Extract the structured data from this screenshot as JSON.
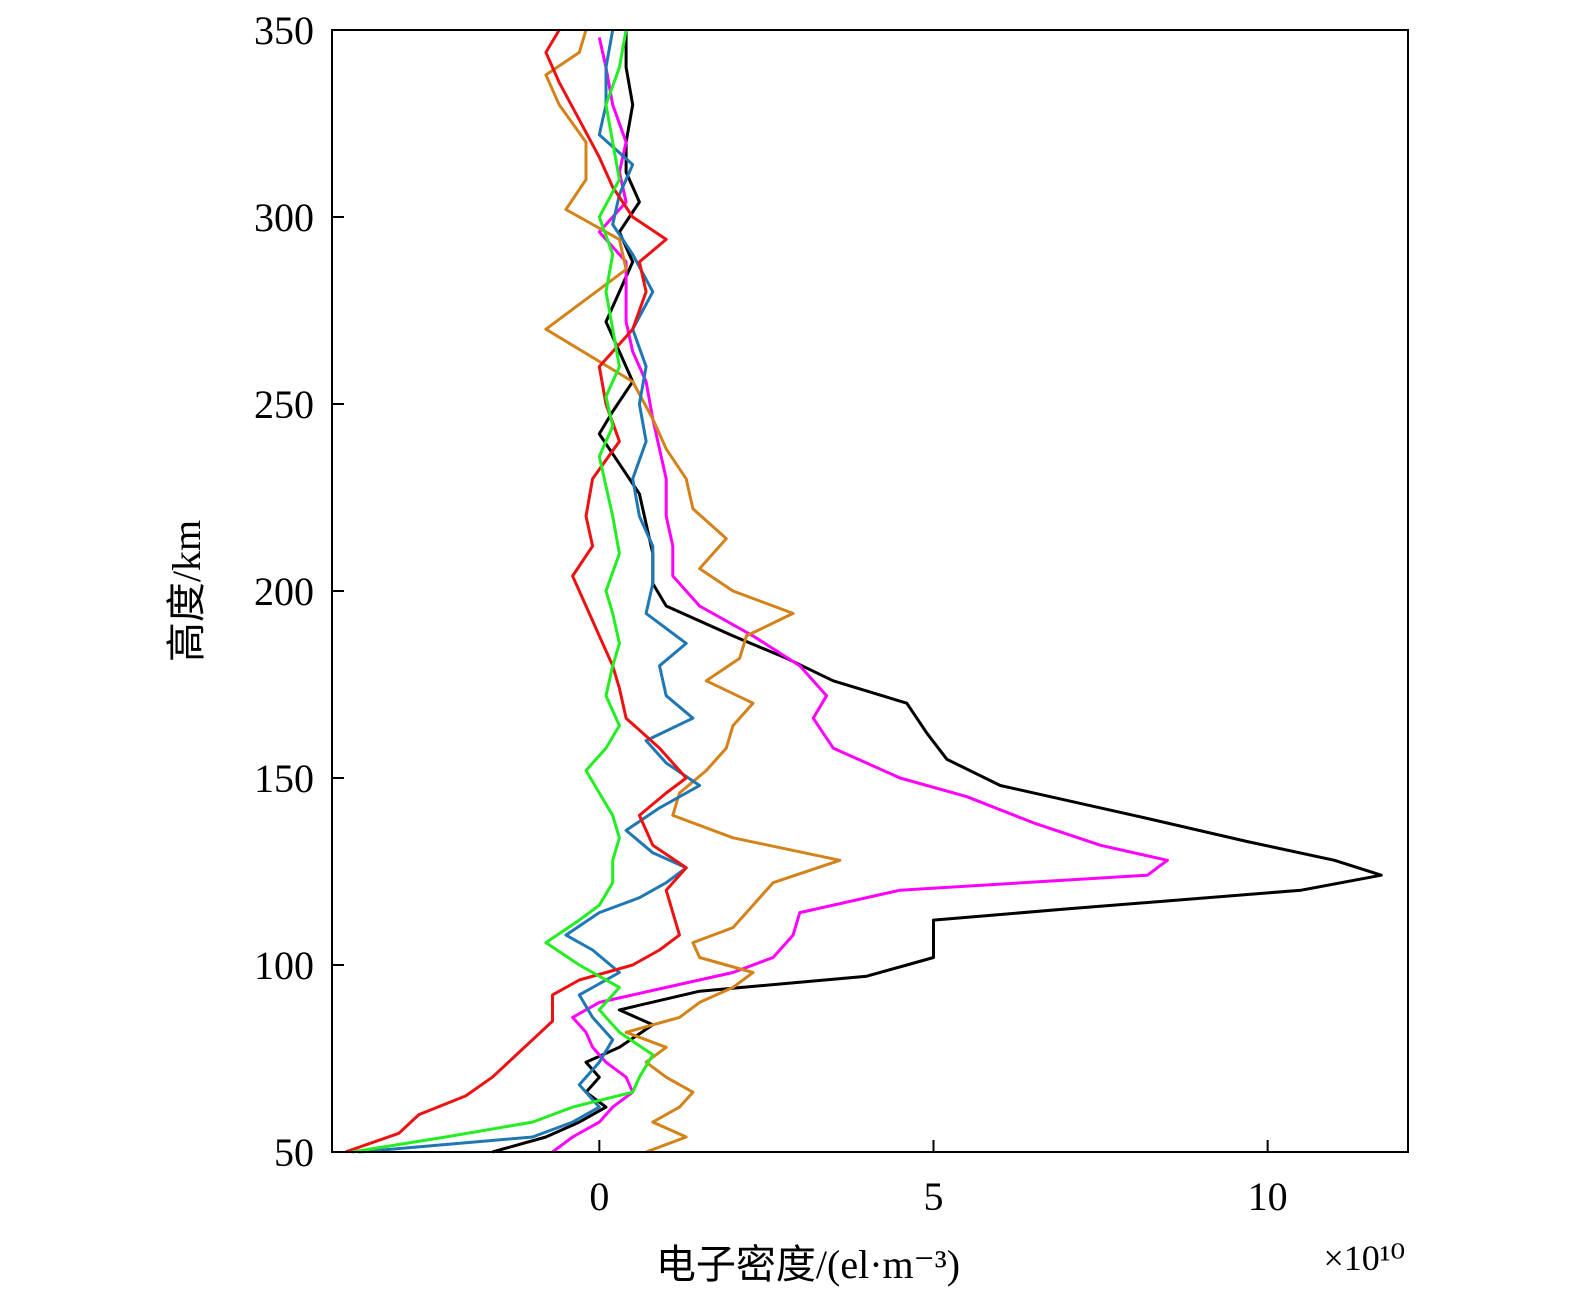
{
  "chart_data": {
    "type": "line",
    "title": "",
    "xlabel": "电子密度/(el·m⁻³)",
    "ylabel": "高度/km",
    "x_multiplier": "×10¹⁰",
    "xlim": [
      -4,
      12.1
    ],
    "ylim": [
      50,
      350
    ],
    "xticks": [
      0,
      5,
      10
    ],
    "xtick_labels": [
      "0",
      "5",
      "10"
    ],
    "yticks": [
      50,
      100,
      150,
      200,
      250,
      300,
      350
    ],
    "ytick_labels": [
      "50",
      "100",
      "150",
      "200",
      "250",
      "300",
      "350"
    ],
    "grid": false,
    "legend": "none",
    "x_units_note": "x values in units of 1e10 el/m^3",
    "series": [
      {
        "color": "#000000",
        "points": [
          [
            -1.6,
            50
          ],
          [
            -0.8,
            54
          ],
          [
            -0.3,
            58
          ],
          [
            0.1,
            62
          ],
          [
            -0.2,
            66
          ],
          [
            0.0,
            70
          ],
          [
            -0.2,
            74
          ],
          [
            0.3,
            78
          ],
          [
            0.8,
            84
          ],
          [
            0.3,
            88
          ],
          [
            1.5,
            93
          ],
          [
            4.0,
            97
          ],
          [
            4.6,
            100
          ],
          [
            5.0,
            102
          ],
          [
            5.0,
            106
          ],
          [
            5.0,
            109
          ],
          [
            5.0,
            112
          ],
          [
            7.0,
            115
          ],
          [
            10.5,
            120
          ],
          [
            11.7,
            124
          ],
          [
            11.0,
            128
          ],
          [
            9.7,
            133
          ],
          [
            8.0,
            140
          ],
          [
            6.0,
            148
          ],
          [
            5.2,
            155
          ],
          [
            4.9,
            162
          ],
          [
            4.6,
            170
          ],
          [
            3.5,
            176
          ],
          [
            2.8,
            182
          ],
          [
            2.0,
            188
          ],
          [
            1.0,
            196
          ],
          [
            0.8,
            202
          ],
          [
            0.8,
            210
          ],
          [
            0.7,
            218
          ],
          [
            0.6,
            226
          ],
          [
            0.3,
            234
          ],
          [
            0.0,
            242
          ],
          [
            0.2,
            248
          ],
          [
            0.5,
            256
          ],
          [
            0.3,
            264
          ],
          [
            0.1,
            272
          ],
          [
            0.3,
            280
          ],
          [
            0.5,
            288
          ],
          [
            0.3,
            296
          ],
          [
            0.6,
            304
          ],
          [
            0.4,
            312
          ],
          [
            0.4,
            320
          ],
          [
            0.5,
            330
          ],
          [
            0.4,
            340
          ],
          [
            0.4,
            350
          ]
        ]
      },
      {
        "color": "#ff00ff",
        "points": [
          [
            -0.7,
            50
          ],
          [
            -0.4,
            54
          ],
          [
            0.0,
            58
          ],
          [
            0.2,
            62
          ],
          [
            0.5,
            66
          ],
          [
            0.4,
            70
          ],
          [
            0.1,
            74
          ],
          [
            -0.1,
            78
          ],
          [
            -0.2,
            82
          ],
          [
            -0.4,
            86
          ],
          [
            0.0,
            90
          ],
          [
            1.0,
            94
          ],
          [
            2.0,
            98
          ],
          [
            2.6,
            102
          ],
          [
            2.9,
            108
          ],
          [
            3.0,
            114
          ],
          [
            4.5,
            120
          ],
          [
            8.2,
            124
          ],
          [
            8.5,
            128
          ],
          [
            7.5,
            132
          ],
          [
            6.5,
            138
          ],
          [
            5.5,
            145
          ],
          [
            4.5,
            150
          ],
          [
            3.5,
            158
          ],
          [
            3.2,
            166
          ],
          [
            3.4,
            172
          ],
          [
            3.0,
            180
          ],
          [
            2.3,
            188
          ],
          [
            1.5,
            196
          ],
          [
            1.1,
            204
          ],
          [
            1.1,
            212
          ],
          [
            1.0,
            220
          ],
          [
            1.0,
            230
          ],
          [
            0.9,
            238
          ],
          [
            0.8,
            246
          ],
          [
            0.7,
            256
          ],
          [
            0.5,
            264
          ],
          [
            0.4,
            272
          ],
          [
            0.4,
            280
          ],
          [
            0.4,
            288
          ],
          [
            0.0,
            296
          ],
          [
            0.4,
            304
          ],
          [
            0.3,
            312
          ],
          [
            0.4,
            320
          ],
          [
            0.2,
            330
          ],
          [
            0.1,
            340
          ],
          [
            0.0,
            348
          ]
        ]
      },
      {
        "color": "#d4821a",
        "points": [
          [
            0.7,
            50
          ],
          [
            1.3,
            54
          ],
          [
            0.8,
            58
          ],
          [
            1.2,
            62
          ],
          [
            1.4,
            66
          ],
          [
            1.0,
            70
          ],
          [
            0.7,
            74
          ],
          [
            1.0,
            78
          ],
          [
            0.4,
            82
          ],
          [
            1.2,
            86
          ],
          [
            1.5,
            90
          ],
          [
            2.0,
            94
          ],
          [
            2.3,
            98
          ],
          [
            1.5,
            102
          ],
          [
            1.4,
            106
          ],
          [
            2.0,
            110
          ],
          [
            2.3,
            116
          ],
          [
            2.6,
            122
          ],
          [
            3.6,
            128
          ],
          [
            2.0,
            134
          ],
          [
            1.1,
            140
          ],
          [
            1.2,
            146
          ],
          [
            1.6,
            152
          ],
          [
            1.9,
            158
          ],
          [
            2.0,
            164
          ],
          [
            2.3,
            170
          ],
          [
            1.6,
            176
          ],
          [
            2.1,
            182
          ],
          [
            2.2,
            188
          ],
          [
            2.9,
            194
          ],
          [
            2.0,
            200
          ],
          [
            1.5,
            206
          ],
          [
            1.9,
            214
          ],
          [
            1.4,
            222
          ],
          [
            1.3,
            230
          ],
          [
            1.0,
            238
          ],
          [
            0.8,
            246
          ],
          [
            0.5,
            256
          ],
          [
            -0.8,
            270
          ],
          [
            -0.2,
            278
          ],
          [
            0.4,
            286
          ],
          [
            0.3,
            294
          ],
          [
            -0.5,
            302
          ],
          [
            -0.2,
            310
          ],
          [
            -0.2,
            320
          ],
          [
            -0.6,
            330
          ],
          [
            -0.8,
            338
          ],
          [
            -0.3,
            344
          ],
          [
            -0.2,
            350
          ]
        ]
      },
      {
        "color": "#1f77b4",
        "points": [
          [
            -3.6,
            50
          ],
          [
            -1.0,
            54
          ],
          [
            -0.4,
            58
          ],
          [
            0.0,
            62
          ],
          [
            -0.3,
            68
          ],
          [
            0.0,
            74
          ],
          [
            0.2,
            80
          ],
          [
            -0.1,
            86
          ],
          [
            -0.3,
            92
          ],
          [
            0.3,
            98
          ],
          [
            -0.1,
            104
          ],
          [
            -0.5,
            108
          ],
          [
            0.0,
            114
          ],
          [
            0.6,
            118
          ],
          [
            1.0,
            122
          ],
          [
            1.3,
            126
          ],
          [
            0.8,
            130
          ],
          [
            0.4,
            136
          ],
          [
            0.9,
            142
          ],
          [
            1.5,
            148
          ],
          [
            1.0,
            154
          ],
          [
            0.7,
            160
          ],
          [
            1.4,
            166
          ],
          [
            1.0,
            172
          ],
          [
            0.9,
            180
          ],
          [
            1.3,
            186
          ],
          [
            0.7,
            194
          ],
          [
            0.8,
            202
          ],
          [
            0.8,
            212
          ],
          [
            0.6,
            220
          ],
          [
            0.5,
            230
          ],
          [
            0.7,
            240
          ],
          [
            0.6,
            250
          ],
          [
            0.7,
            260
          ],
          [
            0.5,
            270
          ],
          [
            0.8,
            280
          ],
          [
            0.5,
            290
          ],
          [
            0.2,
            298
          ],
          [
            0.3,
            306
          ],
          [
            0.5,
            314
          ],
          [
            0.0,
            322
          ],
          [
            0.1,
            330
          ],
          [
            0.1,
            340
          ],
          [
            0.2,
            350
          ]
        ]
      },
      {
        "color": "#ee1111",
        "points": [
          [
            -3.8,
            50
          ],
          [
            -3.0,
            55
          ],
          [
            -2.7,
            60
          ],
          [
            -2.0,
            65
          ],
          [
            -1.6,
            70
          ],
          [
            -1.3,
            75
          ],
          [
            -1.0,
            80
          ],
          [
            -0.7,
            85
          ],
          [
            -0.7,
            92
          ],
          [
            -0.3,
            96
          ],
          [
            0.5,
            100
          ],
          [
            0.9,
            104
          ],
          [
            1.2,
            108
          ],
          [
            1.1,
            114
          ],
          [
            1.0,
            120
          ],
          [
            1.3,
            126
          ],
          [
            0.8,
            132
          ],
          [
            0.6,
            140
          ],
          [
            1.0,
            146
          ],
          [
            1.3,
            150
          ],
          [
            0.9,
            158
          ],
          [
            0.4,
            166
          ],
          [
            0.3,
            174
          ],
          [
            0.2,
            180
          ],
          [
            0.0,
            188
          ],
          [
            -0.2,
            196
          ],
          [
            -0.4,
            204
          ],
          [
            -0.1,
            212
          ],
          [
            -0.2,
            220
          ],
          [
            -0.1,
            230
          ],
          [
            0.3,
            240
          ],
          [
            0.1,
            250
          ],
          [
            0.0,
            260
          ],
          [
            0.5,
            270
          ],
          [
            0.7,
            280
          ],
          [
            0.6,
            288
          ],
          [
            1.0,
            294
          ],
          [
            0.5,
            300
          ],
          [
            0.2,
            308
          ],
          [
            0.0,
            316
          ],
          [
            -0.3,
            326
          ],
          [
            -0.6,
            336
          ],
          [
            -0.8,
            344
          ],
          [
            -0.6,
            350
          ]
        ]
      },
      {
        "color": "#22ee22",
        "points": [
          [
            -3.7,
            50
          ],
          [
            -2.3,
            54
          ],
          [
            -1.0,
            58
          ],
          [
            -0.4,
            62
          ],
          [
            0.5,
            66
          ],
          [
            0.6,
            70
          ],
          [
            0.8,
            76
          ],
          [
            0.3,
            82
          ],
          [
            0.0,
            88
          ],
          [
            0.3,
            94
          ],
          [
            -0.3,
            100
          ],
          [
            -0.8,
            106
          ],
          [
            -0.3,
            112
          ],
          [
            0.0,
            116
          ],
          [
            0.2,
            122
          ],
          [
            0.2,
            128
          ],
          [
            0.3,
            134
          ],
          [
            0.2,
            140
          ],
          [
            0.0,
            146
          ],
          [
            -0.2,
            152
          ],
          [
            0.1,
            158
          ],
          [
            0.3,
            164
          ],
          [
            0.1,
            172
          ],
          [
            0.2,
            180
          ],
          [
            0.3,
            186
          ],
          [
            0.2,
            194
          ],
          [
            0.1,
            200
          ],
          [
            0.3,
            210
          ],
          [
            0.2,
            220
          ],
          [
            0.1,
            228
          ],
          [
            0.0,
            236
          ],
          [
            0.2,
            244
          ],
          [
            0.1,
            252
          ],
          [
            0.3,
            260
          ],
          [
            0.2,
            270
          ],
          [
            0.1,
            280
          ],
          [
            0.2,
            290
          ],
          [
            0.0,
            300
          ],
          [
            0.3,
            310
          ],
          [
            0.2,
            320
          ],
          [
            0.1,
            330
          ],
          [
            0.3,
            340
          ],
          [
            0.4,
            350
          ]
        ]
      }
    ]
  }
}
